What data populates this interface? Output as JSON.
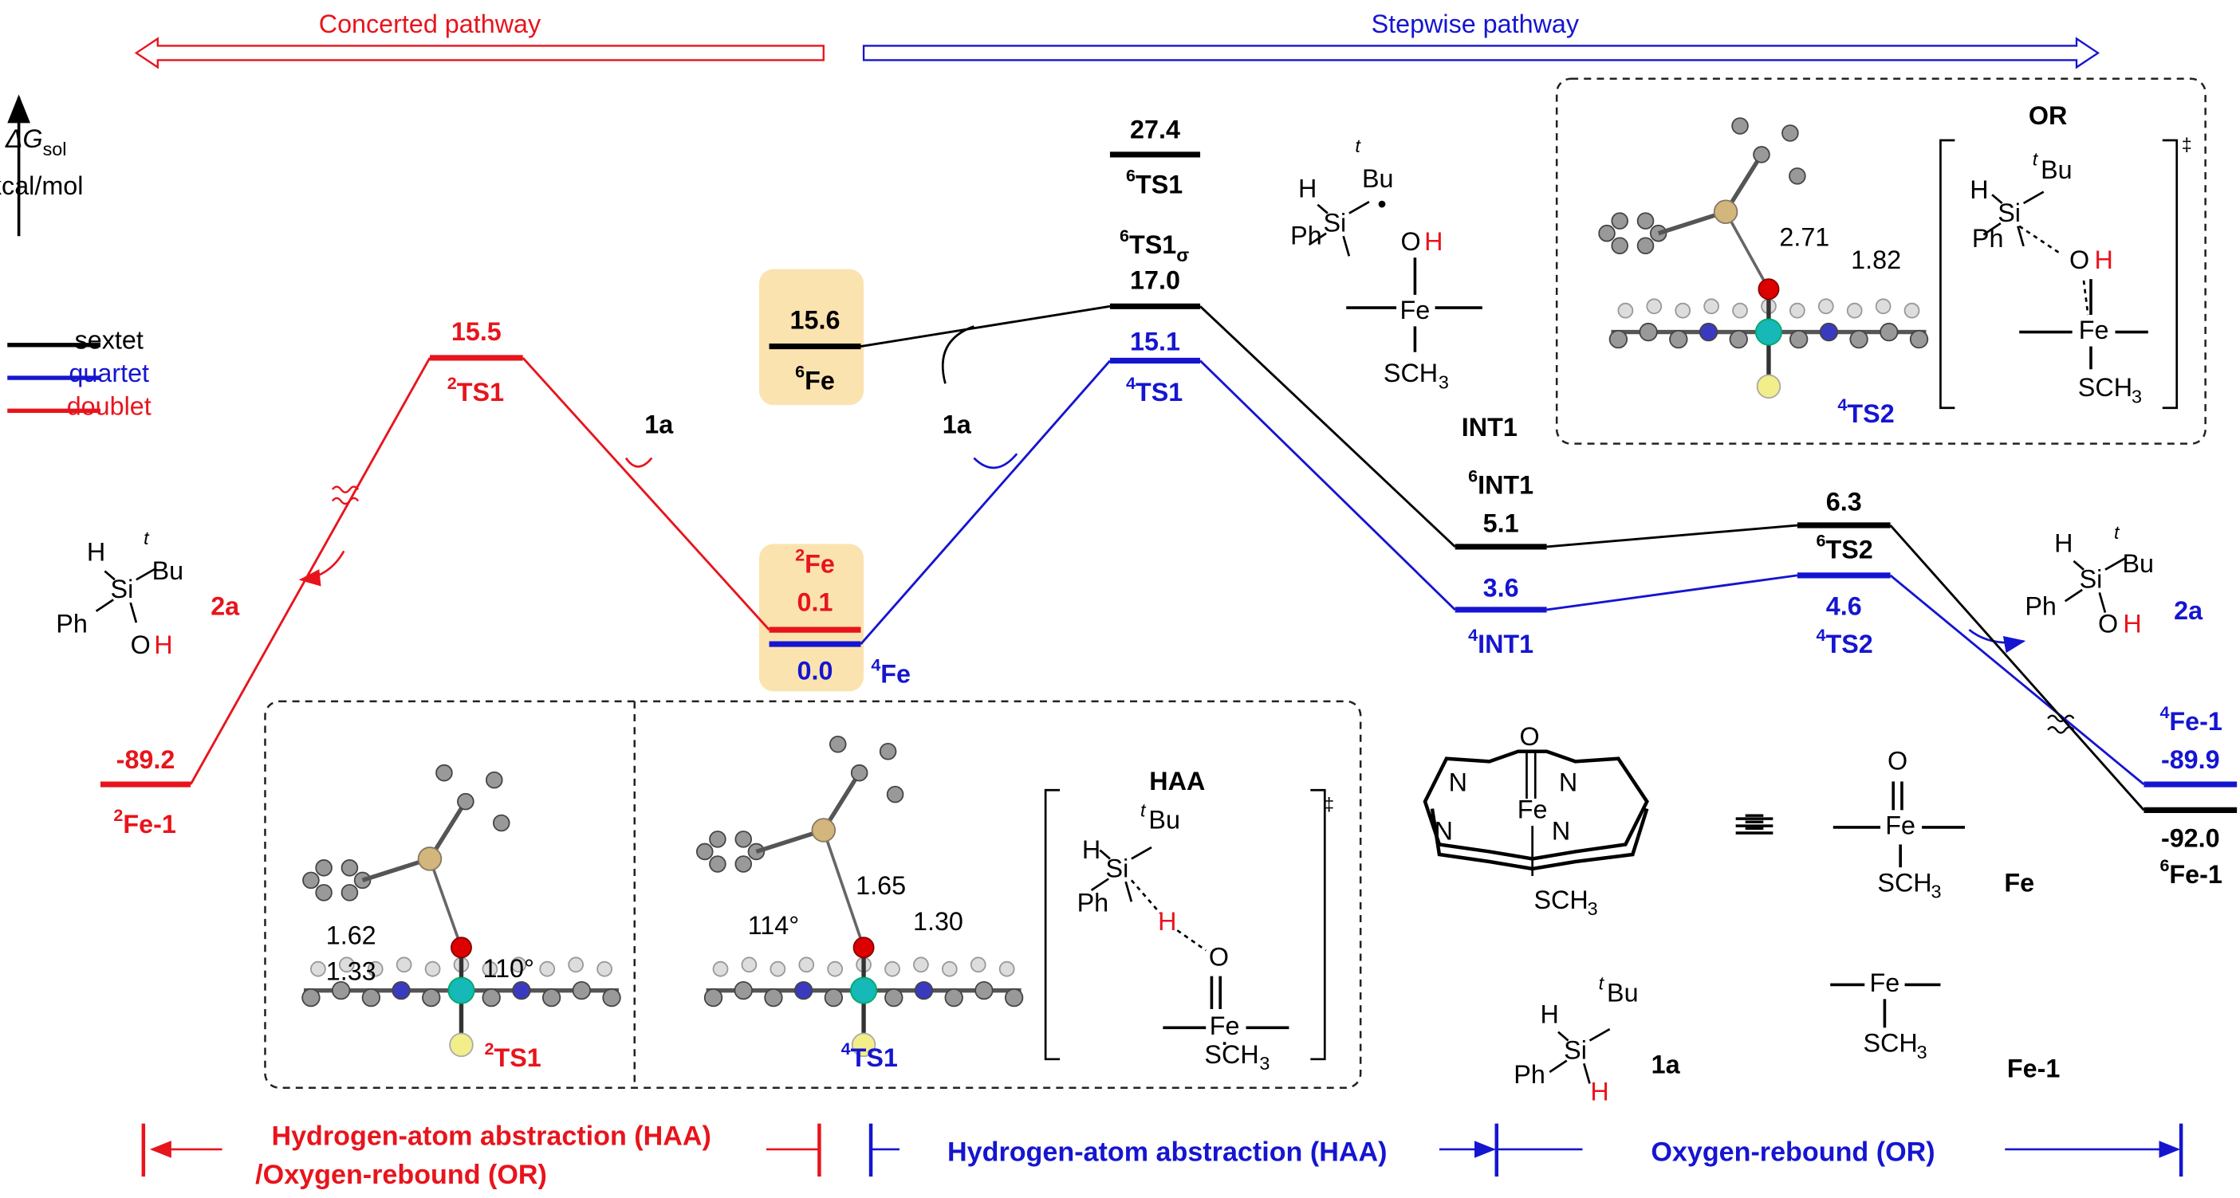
{
  "header": {
    "concerted": "Concerted pathway",
    "stepwise": "Stepwise pathway"
  },
  "axis": {
    "delta": "ΔG",
    "sub": "sol",
    "unit": "kcal/mol"
  },
  "legend": [
    "sextet",
    "quartet",
    "doublet"
  ],
  "levels": [
    {
      "energy": "-89.2",
      "spin": "2",
      "name": "Fe-1"
    },
    {
      "energy": "15.5",
      "spin": "2",
      "name": "TS1"
    },
    {
      "energy": "0.1",
      "spin": "2",
      "name": "Fe"
    },
    {
      "energy": "0.0",
      "spin": "4",
      "name": "Fe"
    },
    {
      "energy": "15.6",
      "spin": "6",
      "name": "Fe"
    },
    {
      "energy": "27.4",
      "spin": "6",
      "name": "TS1"
    },
    {
      "energy": "17.0",
      "spin": "6",
      "name": "TS1",
      "sub": "σ"
    },
    {
      "energy": "15.1",
      "spin": "4",
      "name": "TS1"
    },
    {
      "energy": "5.1",
      "spin": "6",
      "name": "INT1"
    },
    {
      "energy": "3.6",
      "spin": "4",
      "name": "INT1"
    },
    {
      "energy": "6.3",
      "spin": "6",
      "name": "TS2"
    },
    {
      "energy": "4.6",
      "spin": "4",
      "name": "TS2"
    },
    {
      "energy": "-89.9",
      "spin": "4",
      "name": "Fe-1"
    },
    {
      "energy": "-92.0",
      "spin": "6",
      "name": "Fe-1"
    }
  ],
  "insets": [
    {
      "spin": "2",
      "name": "TS1"
    },
    {
      "spin": "4",
      "name": "TS1"
    },
    {
      "spin": "4",
      "name": "TS2"
    }
  ],
  "chem": [
    "H",
    "Si",
    "t",
    "Bu",
    "Ph",
    "O",
    "H",
    "H",
    "Si",
    "t",
    "Bu",
    "Ph",
    "•",
    "O",
    "H",
    "Fe",
    "SCH",
    "3",
    "H",
    "Si",
    "t",
    "Bu",
    "Ph",
    "O",
    "H",
    "OR",
    "‡",
    "H",
    "Si",
    "t",
    "Bu",
    "Ph",
    "O",
    "H",
    "Fe",
    "SCH",
    "3",
    "HAA",
    "‡",
    "H",
    "Si",
    "t",
    "Bu",
    "Ph",
    "H",
    "O",
    "Fe",
    "SCH",
    "3",
    "O",
    "N",
    "N",
    "N",
    "N",
    "Fe",
    "SCH",
    "3",
    "≡",
    "O",
    "Fe",
    "SCH",
    "3",
    "Fe",
    "H",
    "Si",
    "t",
    "Bu",
    "Ph",
    "H",
    "1a",
    "Fe",
    "SCH",
    "3",
    "Fe-1",
    "INT1",
    "2a",
    "2a",
    "1a",
    "1a",
    "1.62",
    "1.33",
    "110°",
    "1.65",
    "1.30",
    "114°",
    "2.71",
    "1.82"
  ],
  "bottom": {
    "concerted_1": "Hydrogen-atom abstraction (HAA)",
    "concerted_2": "/Oxygen-rebound (OR)",
    "haa": "Hydrogen-atom abstraction (HAA)",
    "or": "Oxygen-rebound (OR)"
  }
}
